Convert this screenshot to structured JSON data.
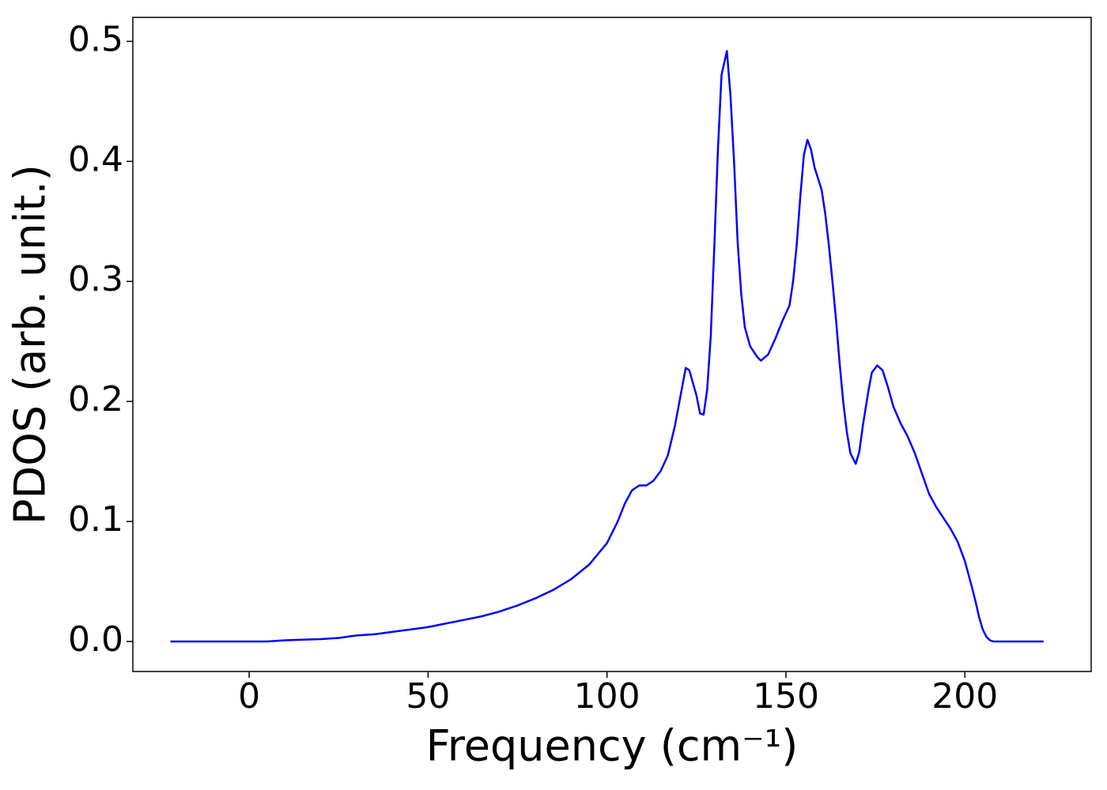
{
  "chart_data": {
    "type": "line",
    "xlabel": "Frequency (cm⁻¹)",
    "ylabel": "PDOS (arb. unit.)",
    "x": [
      -22,
      0,
      5,
      10,
      20,
      25,
      30,
      35,
      40,
      45,
      50,
      55,
      60,
      65,
      70,
      75,
      80,
      85,
      90,
      95,
      100,
      103,
      105,
      107,
      109,
      111,
      113,
      115,
      117,
      119,
      121,
      122,
      123,
      125,
      126,
      127,
      128,
      129,
      130,
      131,
      132,
      133.5,
      134.5,
      135.5,
      136.5,
      137.5,
      138.5,
      140,
      142,
      143,
      145,
      147,
      149,
      151,
      152,
      153,
      154,
      155,
      156,
      157,
      158,
      160,
      161,
      162,
      163,
      164,
      165,
      166,
      167,
      168,
      169.5,
      170.5,
      171.5,
      173,
      174,
      175.5,
      177,
      178.5,
      180,
      182,
      184,
      186,
      188,
      190,
      192,
      194,
      196,
      198,
      200,
      202,
      203,
      204,
      205,
      206,
      207,
      208,
      215,
      222
    ],
    "series": [
      {
        "name": "PDOS",
        "color": "#0000ff",
        "values": [
          0,
          0,
          0,
          0.001,
          0.002,
          0.003,
          0.005,
          0.006,
          0.008,
          0.01,
          0.012,
          0.015,
          0.018,
          0.021,
          0.025,
          0.03,
          0.036,
          0.043,
          0.052,
          0.064,
          0.082,
          0.1,
          0.115,
          0.126,
          0.13,
          0.13,
          0.134,
          0.142,
          0.155,
          0.18,
          0.212,
          0.228,
          0.226,
          0.205,
          0.19,
          0.189,
          0.21,
          0.255,
          0.33,
          0.41,
          0.472,
          0.492,
          0.455,
          0.4,
          0.333,
          0.29,
          0.262,
          0.246,
          0.237,
          0.234,
          0.239,
          0.252,
          0.267,
          0.28,
          0.3,
          0.33,
          0.37,
          0.405,
          0.418,
          0.41,
          0.395,
          0.376,
          0.356,
          0.33,
          0.3,
          0.268,
          0.232,
          0.2,
          0.175,
          0.157,
          0.148,
          0.158,
          0.18,
          0.208,
          0.224,
          0.23,
          0.226,
          0.212,
          0.196,
          0.182,
          0.171,
          0.157,
          0.14,
          0.123,
          0.112,
          0.103,
          0.094,
          0.083,
          0.067,
          0.045,
          0.033,
          0.02,
          0.01,
          0.004,
          0.001,
          0,
          0,
          0
        ]
      }
    ],
    "xlim": [
      -32.5,
      235.3
    ],
    "xticks": [
      0,
      50,
      100,
      150,
      200
    ],
    "ylim": [
      -0.025,
      0.52
    ],
    "yticks": [
      {
        "value": 0,
        "label": "0.0"
      },
      0.1,
      0.2,
      0.3,
      0.4,
      0.5
    ]
  }
}
